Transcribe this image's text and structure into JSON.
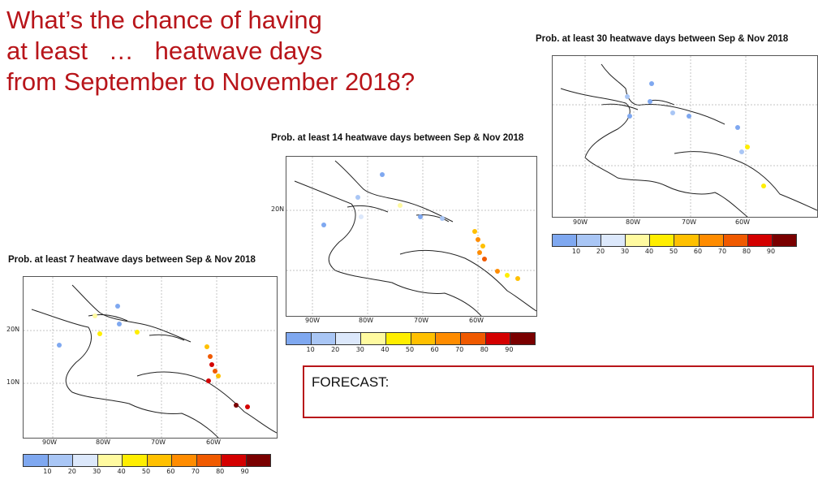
{
  "title_lines": [
    "What’s the chance of having",
    "at least   …   heatwave days",
    "from September to November 2018?"
  ],
  "panels": [
    {
      "title": "Prob. at least 30 heatwave days between Sep & Nov 2018",
      "lat_labels": [
        "",
        ""
      ],
      "lon_labels": [
        "90W",
        "80W",
        "70W",
        "60W"
      ],
      "cbar_ticks": [
        "10",
        "20",
        "30",
        "40",
        "50",
        "60",
        "70",
        "80",
        "90"
      ]
    },
    {
      "title": "Prob. at least 14 heatwave days between Sep & Nov 2018",
      "lat_labels": [
        "20N"
      ],
      "lon_labels": [
        "90W",
        "80W",
        "70W",
        "60W"
      ],
      "cbar_ticks": [
        "10",
        "20",
        "30",
        "40",
        "50",
        "60",
        "70",
        "80",
        "90"
      ]
    },
    {
      "title": "Prob. at least  7 heatwave days between Sep & Nov 2018",
      "lat_labels": [
        "20N",
        "10N"
      ],
      "lon_labels": [
        "90W",
        "80W",
        "70W",
        "60W"
      ],
      "cbar_ticks": [
        "10",
        "20",
        "30",
        "40",
        "50",
        "60",
        "70",
        "80",
        "90"
      ]
    }
  ],
  "colorbar_colors": [
    "#7fa8f0",
    "#a9c6f5",
    "#dce8fb",
    "#fffaa0",
    "#ffee00",
    "#ffc000",
    "#ff8c00",
    "#f05a00",
    "#d40000",
    "#7a0000"
  ],
  "forecast": {
    "label": "FORECAST:"
  }
}
